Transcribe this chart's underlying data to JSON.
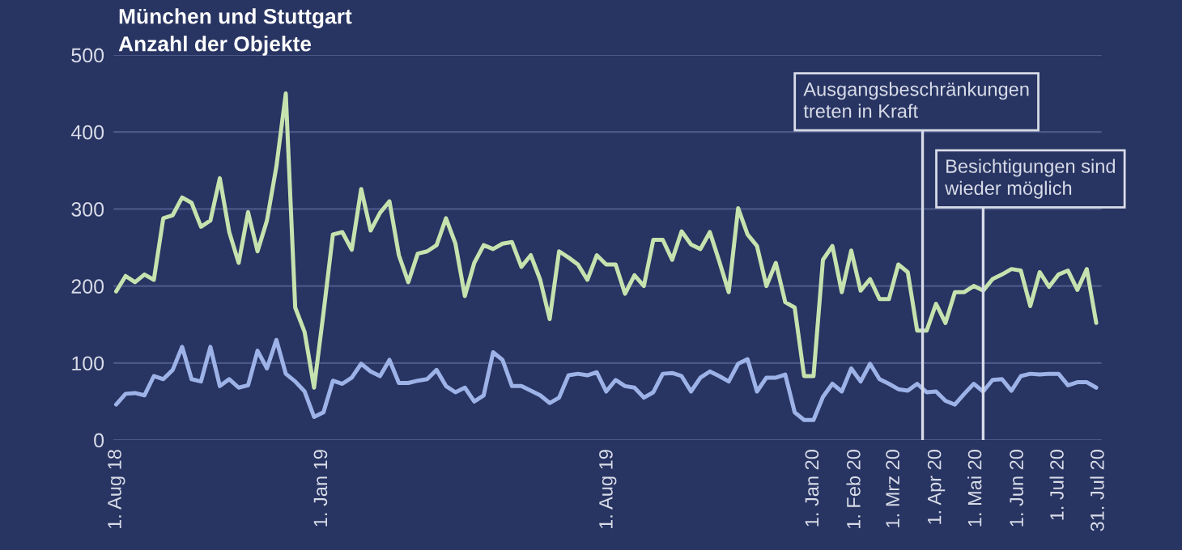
{
  "chart_data": {
    "type": "line",
    "title": "München und Stuttgart",
    "subtitle": "Anzahl der Objekte",
    "x": [
      "2018-08-01",
      "2018-08-08",
      "2018-08-15",
      "2018-08-22",
      "2018-08-29",
      "2018-09-05",
      "2018-09-12",
      "2018-09-19",
      "2018-09-26",
      "2018-10-03",
      "2018-10-10",
      "2018-10-17",
      "2018-10-24",
      "2018-10-31",
      "2018-11-07",
      "2018-11-14",
      "2018-11-21",
      "2018-11-28",
      "2018-12-05",
      "2018-12-12",
      "2018-12-19",
      "2018-12-26",
      "2019-01-02",
      "2019-01-09",
      "2019-01-16",
      "2019-01-23",
      "2019-01-30",
      "2019-02-06",
      "2019-02-13",
      "2019-02-20",
      "2019-02-27",
      "2019-03-06",
      "2019-03-13",
      "2019-03-20",
      "2019-03-27",
      "2019-04-03",
      "2019-04-10",
      "2019-04-17",
      "2019-04-24",
      "2019-05-01",
      "2019-05-08",
      "2019-05-15",
      "2019-05-22",
      "2019-05-29",
      "2019-06-05",
      "2019-06-12",
      "2019-06-19",
      "2019-06-26",
      "2019-07-03",
      "2019-07-10",
      "2019-07-17",
      "2019-07-24",
      "2019-07-31",
      "2019-08-07",
      "2019-08-14",
      "2019-08-21",
      "2019-08-28",
      "2019-09-04",
      "2019-09-11",
      "2019-09-18",
      "2019-09-25",
      "2019-10-02",
      "2019-10-09",
      "2019-10-16",
      "2019-10-23",
      "2019-10-30",
      "2019-11-06",
      "2019-11-13",
      "2019-11-20",
      "2019-11-27",
      "2019-12-04",
      "2019-12-11",
      "2019-12-18",
      "2019-12-25",
      "2020-01-01",
      "2020-01-08",
      "2020-01-15",
      "2020-01-22",
      "2020-01-29",
      "2020-02-05",
      "2020-02-12",
      "2020-02-19",
      "2020-02-26",
      "2020-03-04",
      "2020-03-11",
      "2020-03-18",
      "2020-03-25",
      "2020-04-01",
      "2020-04-08",
      "2020-04-15",
      "2020-04-22",
      "2020-04-29",
      "2020-05-06",
      "2020-05-13",
      "2020-05-20",
      "2020-05-27",
      "2020-06-03",
      "2020-06-10",
      "2020-06-17",
      "2020-06-24",
      "2020-07-01",
      "2020-07-08",
      "2020-07-15",
      "2020-07-22",
      "2020-07-29"
    ],
    "series": [
      {
        "color": "#c5e3ae",
        "values": [
          193,
          213,
          205,
          215,
          208,
          288,
          292,
          315,
          308,
          277,
          285,
          340,
          270,
          230,
          296,
          245,
          285,
          355,
          450,
          172,
          140,
          68,
          165,
          267,
          270,
          247,
          326,
          272,
          295,
          310,
          240,
          205,
          242,
          245,
          253,
          288,
          255,
          187,
          230,
          253,
          248,
          255,
          257,
          225,
          240,
          208,
          157,
          245,
          237,
          228,
          208,
          240,
          228,
          228,
          190,
          214,
          200,
          260,
          260,
          234,
          271,
          254,
          248,
          270,
          232,
          192,
          301,
          267,
          252,
          200,
          230,
          179,
          172,
          83,
          83,
          234,
          252,
          192,
          246,
          194,
          209,
          183,
          183,
          228,
          218,
          142,
          142,
          177,
          152,
          192,
          192,
          200,
          194,
          209,
          215,
          222,
          220,
          174,
          218,
          199,
          215,
          220,
          195,
          222,
          152
        ]
      },
      {
        "color": "#9db3e8",
        "values": [
          46,
          60,
          61,
          58,
          83,
          79,
          91,
          121,
          79,
          76,
          121,
          70,
          79,
          68,
          71,
          116,
          93,
          130,
          86,
          76,
          63,
          30,
          36,
          77,
          73,
          81,
          99,
          89,
          83,
          104,
          74,
          74,
          77,
          79,
          91,
          70,
          62,
          68,
          50,
          58,
          114,
          104,
          70,
          70,
          64,
          58,
          48,
          55,
          84,
          86,
          84,
          88,
          63,
          78,
          70,
          68,
          55,
          62,
          86,
          87,
          83,
          63,
          81,
          89,
          83,
          76,
          99,
          105,
          63,
          81,
          81,
          85,
          36,
          26,
          26,
          56,
          73,
          63,
          93,
          76,
          99,
          79,
          73,
          66,
          64,
          73,
          62,
          63,
          51,
          46,
          60,
          73,
          63,
          78,
          79,
          64,
          83,
          86,
          85,
          86,
          86,
          71,
          75,
          75,
          68
        ]
      }
    ],
    "xlim": [
      "2018-07-30",
      "2020-08-02"
    ],
    "xticks": [
      {
        "value": "2018-08-01",
        "label": "1. Aug 18"
      },
      {
        "value": "2019-01-01",
        "label": "1. Jan 19"
      },
      {
        "value": "2019-08-01",
        "label": "1. Aug 19"
      },
      {
        "value": "2020-01-01",
        "label": "1. Jan 20"
      },
      {
        "value": "2020-02-01",
        "label": "1. Feb 20"
      },
      {
        "value": "2020-03-01",
        "label": "1. Mrz 20"
      },
      {
        "value": "2020-04-01",
        "label": "1. Apr 20"
      },
      {
        "value": "2020-05-01",
        "label": "1. Mai 20"
      },
      {
        "value": "2020-06-01",
        "label": "1. Jun 20"
      },
      {
        "value": "2020-07-01",
        "label": "1. Jul 20"
      },
      {
        "value": "2020-07-31",
        "label": "31. Jul 20"
      }
    ],
    "ylim": [
      0,
      500
    ],
    "yticks": [
      0,
      100,
      200,
      300,
      400,
      500
    ],
    "grid": "y",
    "legend": false,
    "ref_lines": [
      {
        "axis": "x",
        "value": "2020-03-22",
        "label": "Ausgangsbeschränkungen\ntreten in Kraft",
        "color": "#d8dce8"
      },
      {
        "axis": "x",
        "value": "2020-05-06",
        "label": "Besichtigungen sind\nwieder möglich",
        "color": "#d8dce8"
      }
    ]
  }
}
